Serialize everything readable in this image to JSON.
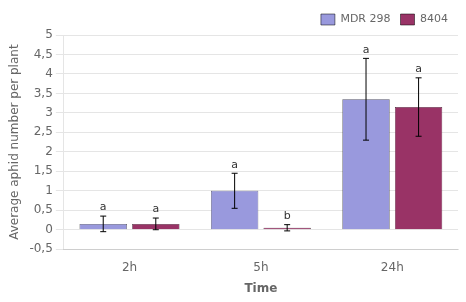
{
  "chart_data": {
    "type": "bar",
    "categories": [
      "2h",
      "5h",
      "24h"
    ],
    "series": [
      {
        "name": "MDR 298",
        "color": "#9999DD",
        "values": [
          0.15,
          1.0,
          3.35
        ],
        "errors": [
          0.2,
          0.45,
          1.05
        ],
        "annotations": [
          "a",
          "a",
          "a"
        ]
      },
      {
        "name": "8404",
        "color": "#993366",
        "values": [
          0.15,
          0.05,
          3.15
        ],
        "errors": [
          0.15,
          0.08,
          0.75
        ],
        "annotations": [
          "a",
          "b",
          "a"
        ]
      }
    ],
    "xlabel": "Time",
    "ylabel": "Average aphid number per plant",
    "ylim": [
      -0.5,
      5
    ],
    "yticks": [
      {
        "value": -0.5,
        "label": "-0,5"
      },
      0,
      {
        "value": 0.5,
        "label": "0,5"
      },
      1,
      {
        "value": 1.5,
        "label": "1,5"
      },
      2,
      {
        "value": 2.5,
        "label": "2,5"
      },
      3,
      {
        "value": 3.5,
        "label": "3,5"
      },
      4,
      {
        "value": 4.5,
        "label": "4,5"
      },
      5
    ],
    "grid": "y",
    "legend": "upper right"
  }
}
